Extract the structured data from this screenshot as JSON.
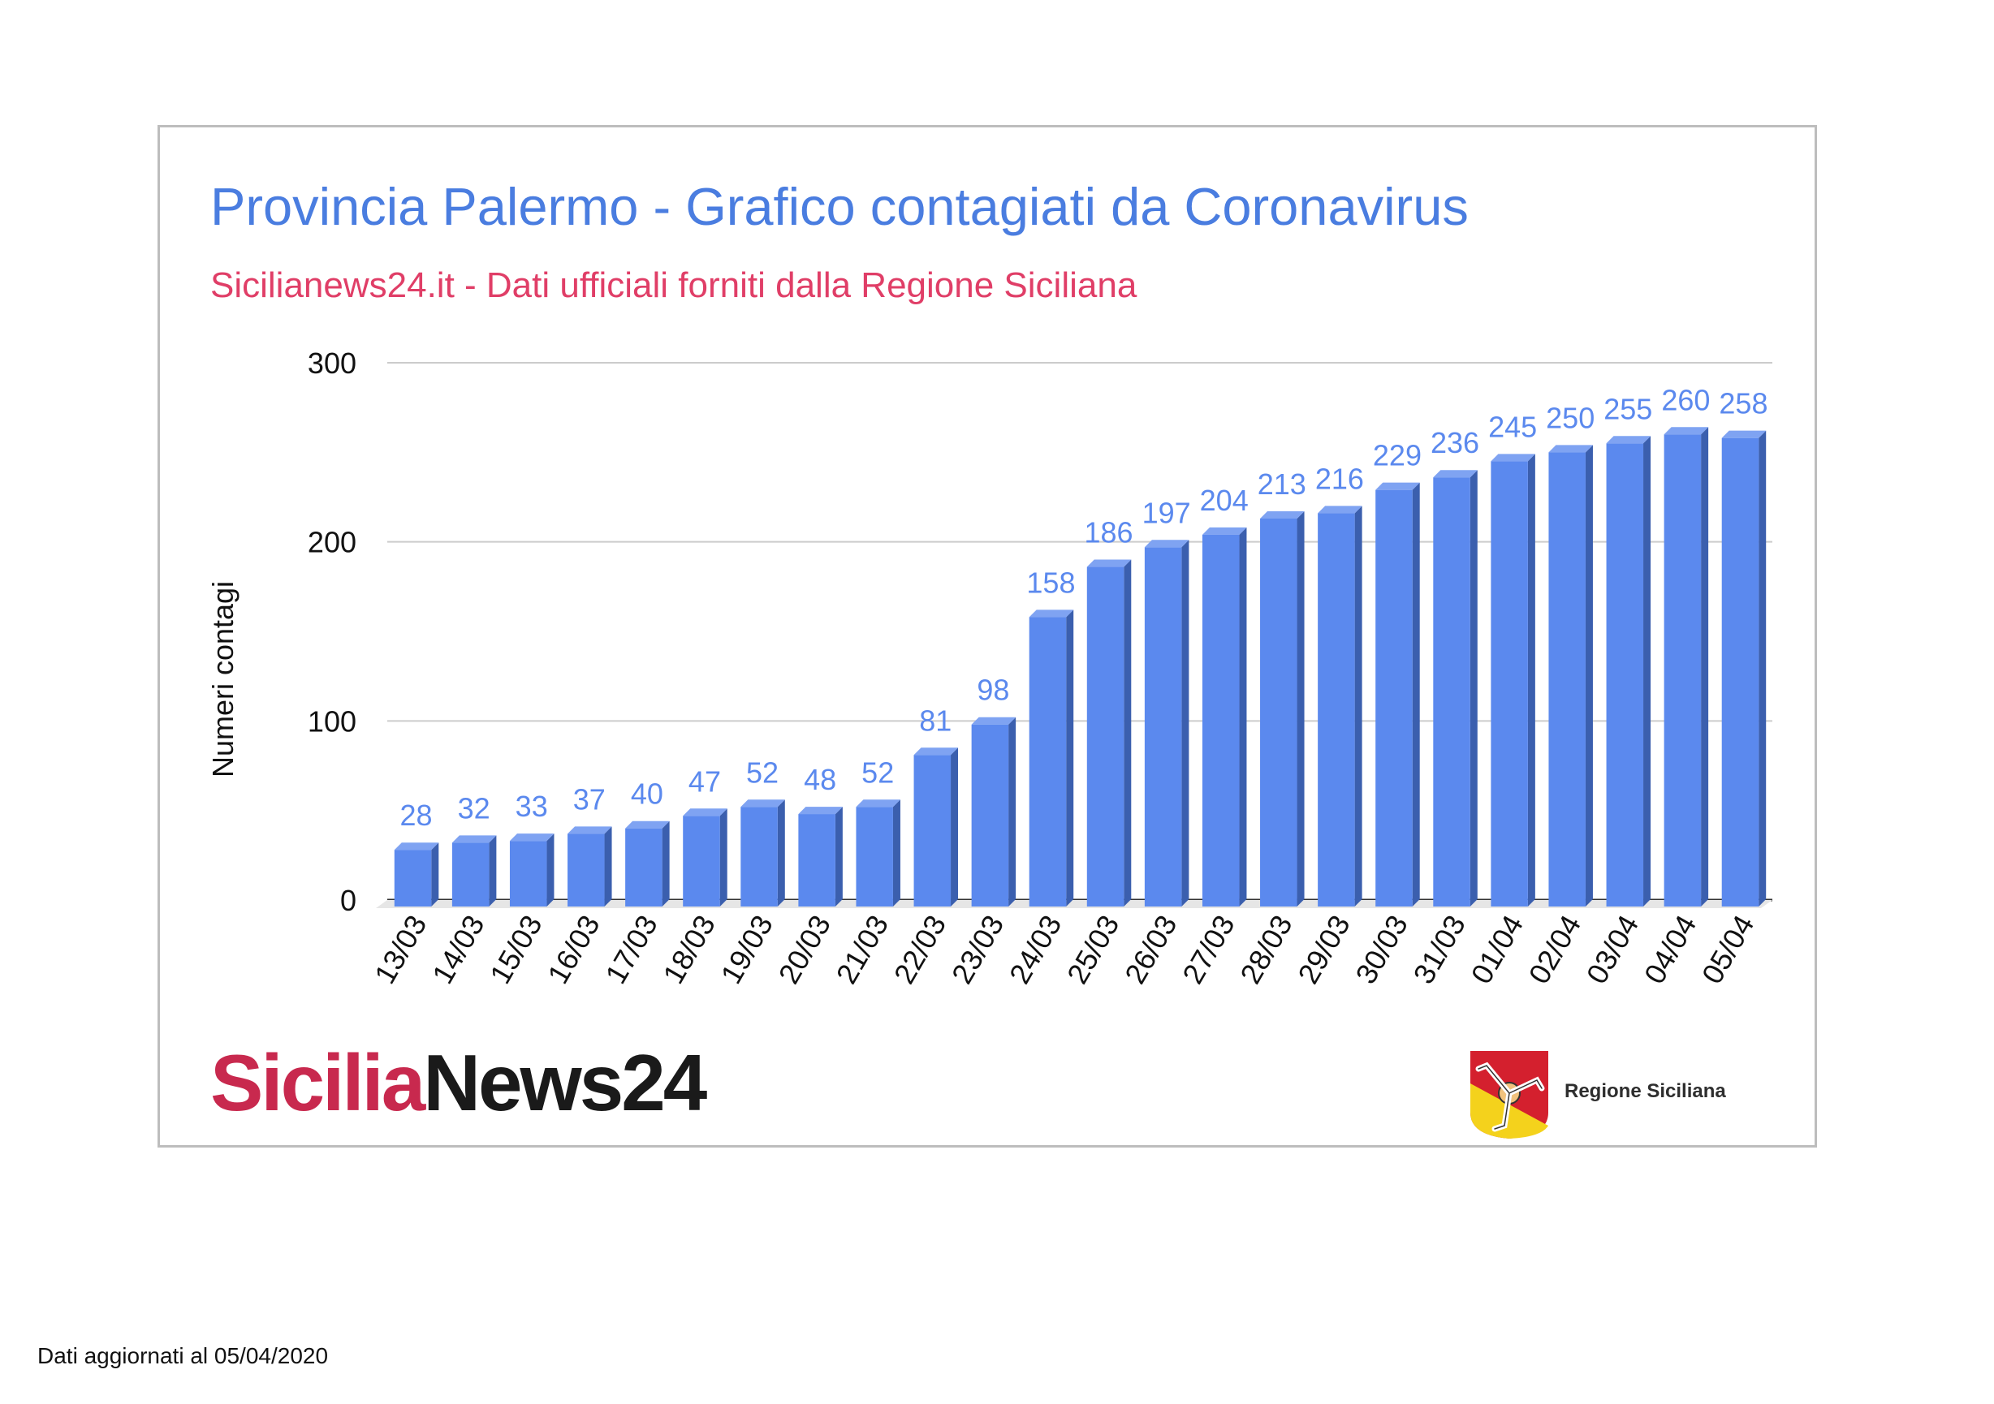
{
  "header": {
    "title": "Provincia Palermo - Grafico contagiati da Coronavirus",
    "subtitle": "Sicilianews24.it - Dati ufficiali forniti dalla Regione Siciliana"
  },
  "branding": {
    "logo_left_part1": "Sicilia",
    "logo_left_part2": "News24",
    "logo_right_label": "Regione Siciliana"
  },
  "footer": {
    "note": "Dati aggiornati al 05/04/2020"
  },
  "colors": {
    "title": "#4a7de0",
    "subtitle": "#e03e67",
    "bar_front": "#5b89ee",
    "bar_side": "#3b5fae",
    "bar_top": "#7fa3f2",
    "data_label": "#5b89ee",
    "grid": "#cccccc",
    "logo_red": "#c8294e"
  },
  "chart_data": {
    "type": "bar",
    "title": "Provincia Palermo - Grafico contagiati da Coronavirus",
    "subtitle": "Sicilianews24.it - Dati ufficiali forniti dalla Regione Siciliana",
    "xlabel": "",
    "ylabel": "Numeri contagi",
    "ylim": [
      0,
      300
    ],
    "yticks": [
      0,
      100,
      200,
      300
    ],
    "grid": true,
    "legend": "none",
    "categories": [
      "13/03",
      "14/03",
      "15/03",
      "16/03",
      "17/03",
      "18/03",
      "19/03",
      "20/03",
      "21/03",
      "22/03",
      "23/03",
      "24/03",
      "25/03",
      "26/03",
      "27/03",
      "28/03",
      "29/03",
      "30/03",
      "31/03",
      "01/04",
      "02/04",
      "03/04",
      "04/04",
      "05/04"
    ],
    "values": [
      28,
      32,
      33,
      37,
      40,
      47,
      52,
      48,
      52,
      81,
      98,
      158,
      186,
      197,
      204,
      213,
      216,
      229,
      236,
      245,
      250,
      255,
      260,
      258
    ]
  }
}
